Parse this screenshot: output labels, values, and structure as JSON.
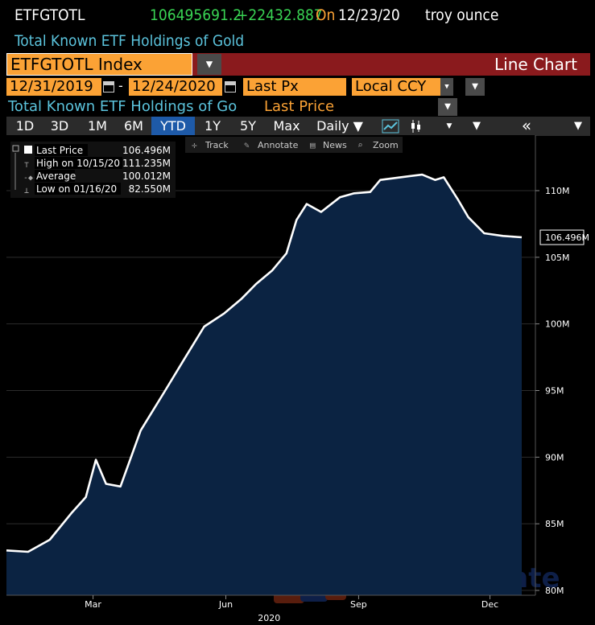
{
  "ticker": {
    "symbol": "ETFGTOTL",
    "value": "106495691.2",
    "change": "+22432.887",
    "on_label": "On",
    "date": "12/23/20",
    "unit": "troy ounce"
  },
  "description": "Total Known ETF Holdings of Gold",
  "security": {
    "name": "ETFGTOTL Index",
    "chart_type_label": "Line Chart"
  },
  "params": {
    "start_date": "12/31/2019",
    "dash": "-",
    "end_date": "12/24/2020",
    "field": "Last Px",
    "currency": "Local CCY"
  },
  "series_line": {
    "name": "Total Known ETF Holdings of Go",
    "field_label": "Last Price"
  },
  "toolbar": {
    "periods": [
      "1D",
      "3D",
      "1M",
      "6M",
      "YTD",
      "1Y",
      "5Y",
      "Max"
    ],
    "selected_period": "YTD",
    "frequency": "Daily ▼"
  },
  "chart_tools": [
    "Track",
    "Annotate",
    "News",
    "Zoom"
  ],
  "legend": {
    "rows": [
      {
        "label": "Last Price",
        "value": "106.496M"
      },
      {
        "label": "High on 10/15/20",
        "value": "111.235M"
      },
      {
        "label": "Average",
        "value": "100.012M"
      },
      {
        "label": "Low on 01/16/20",
        "value": "82.550M"
      }
    ]
  },
  "colors": {
    "accent": "#fba235",
    "bar_red": "#8a1a1d",
    "area_fill": "#0b2342",
    "cyan": "#5bc3dc",
    "green": "#39d353"
  },
  "watermark": "Dubaotiente",
  "chart_data": {
    "type": "area",
    "ylabel": "",
    "xlabel": "",
    "ylim": [
      80,
      113
    ],
    "y_ticks": [
      80,
      85,
      90,
      95,
      100,
      105,
      110
    ],
    "y_tick_labels": [
      "80M",
      "85M",
      "90M",
      "95M",
      "100M",
      "105M",
      "110M"
    ],
    "x_tick_labels": [
      "Mar",
      "Jun",
      "Sep",
      "Dec"
    ],
    "x_tick_dates": [
      "2020-03-01",
      "2020-06-01",
      "2020-09-01",
      "2020-12-01"
    ],
    "year_label": "2020",
    "last_value_label": "106.496M",
    "last_value": 106.496,
    "dates": [
      "2020-01-01",
      "2020-01-16",
      "2020-01-31",
      "2020-02-15",
      "2020-02-25",
      "2020-03-03",
      "2020-03-10",
      "2020-03-20",
      "2020-04-03",
      "2020-04-20",
      "2020-05-04",
      "2020-05-17",
      "2020-05-31",
      "2020-06-12",
      "2020-06-22",
      "2020-07-03",
      "2020-07-13",
      "2020-07-20",
      "2020-07-27",
      "2020-08-06",
      "2020-08-19",
      "2020-08-29",
      "2020-09-09",
      "2020-09-16",
      "2020-09-30",
      "2020-10-15",
      "2020-10-24",
      "2020-10-30",
      "2020-11-09",
      "2020-11-16",
      "2020-11-27",
      "2020-12-10",
      "2020-12-23"
    ],
    "series": [
      {
        "values": [
          83.0,
          82.9,
          83.8,
          85.8,
          87.0,
          89.8,
          88.0,
          87.8,
          92.0,
          95.0,
          97.5,
          99.8,
          100.8,
          101.9,
          103.0,
          104.0,
          105.3,
          107.8,
          109.0,
          108.4,
          109.5,
          109.8,
          109.9,
          110.8,
          111.0,
          111.2,
          110.8,
          111.0,
          109.3,
          108.0,
          106.8,
          106.6,
          106.5
        ]
      }
    ]
  }
}
